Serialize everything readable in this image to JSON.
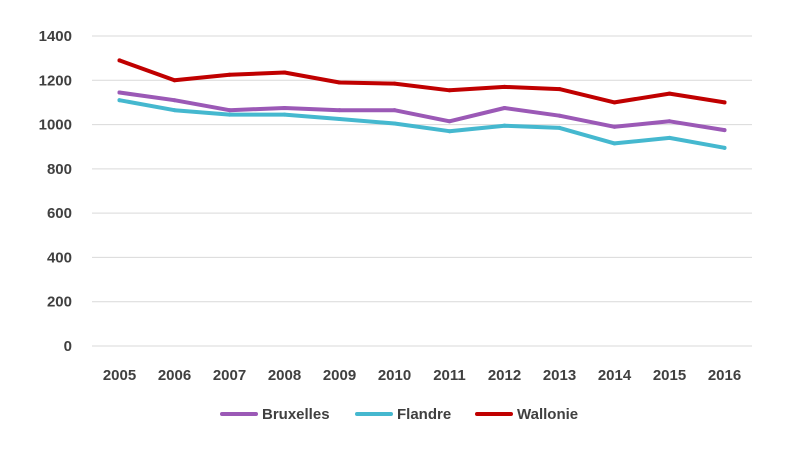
{
  "chart_data": {
    "type": "line",
    "title": "",
    "xlabel": "",
    "ylabel": "",
    "ylim": [
      0,
      1400
    ],
    "yticks": [
      0,
      200,
      400,
      600,
      800,
      1000,
      1200,
      1400
    ],
    "grid": true,
    "legend_position": "bottom",
    "categories": [
      "2005",
      "2006",
      "2007",
      "2008",
      "2009",
      "2010",
      "2011",
      "2012",
      "2013",
      "2014",
      "2015",
      "2016"
    ],
    "series": [
      {
        "name": "Bruxelles",
        "color": "#9b59b6",
        "values": [
          1145,
          1110,
          1065,
          1075,
          1065,
          1065,
          1015,
          1075,
          1040,
          990,
          1015,
          975
        ]
      },
      {
        "name": "Flandre",
        "color": "#45b8cf",
        "values": [
          1110,
          1065,
          1045,
          1045,
          1025,
          1005,
          970,
          995,
          985,
          915,
          940,
          895
        ]
      },
      {
        "name": "Wallonie",
        "color": "#c00000",
        "values": [
          1290,
          1200,
          1225,
          1235,
          1190,
          1185,
          1155,
          1170,
          1160,
          1100,
          1140,
          1100
        ]
      }
    ]
  }
}
